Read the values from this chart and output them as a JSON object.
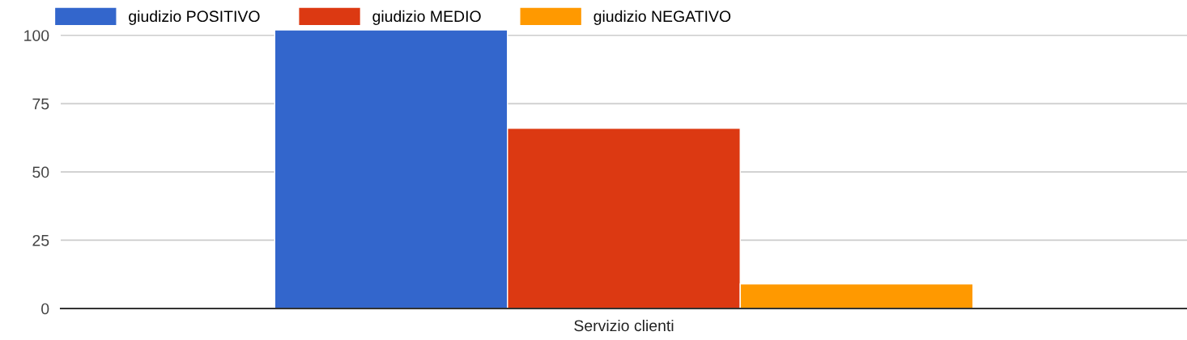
{
  "chart_data": {
    "type": "bar",
    "categories": [
      "Servizio clienti"
    ],
    "series": [
      {
        "name": "giudizio POSITIVO",
        "color": "#3366cc",
        "values": [
          102
        ]
      },
      {
        "name": "giudizio MEDIO",
        "color": "#dc3912",
        "values": [
          66
        ]
      },
      {
        "name": "giudizio NEGATIVO",
        "color": "#ff9900",
        "values": [
          9
        ]
      }
    ],
    "ylim": [
      0,
      102
    ],
    "yticks": [
      0,
      25,
      50,
      75,
      100
    ],
    "grid": "y",
    "legend": "top left"
  }
}
